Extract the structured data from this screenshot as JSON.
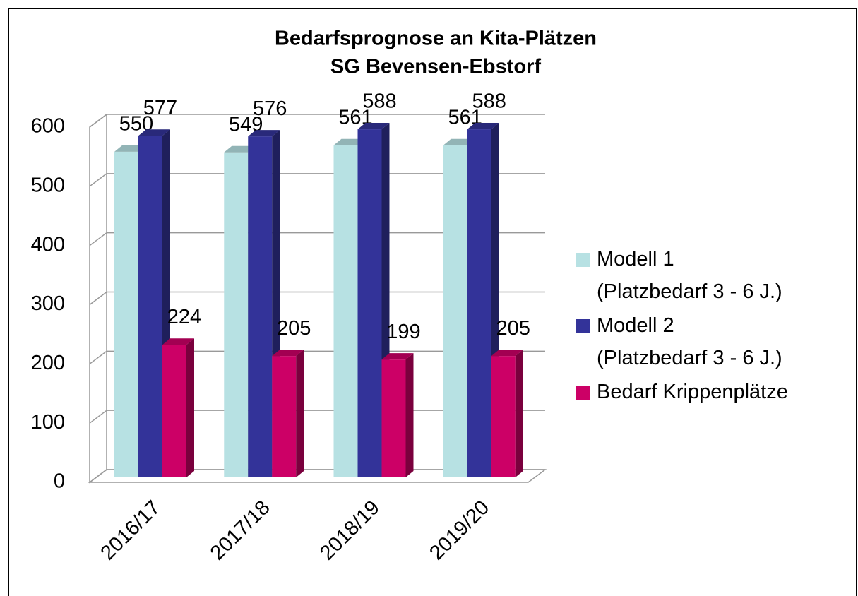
{
  "chart_data": {
    "type": "bar3d",
    "title": "Bedarfsprognose an Kita-Plätzen",
    "subtitle": "SG Bevensen-Ebstorf",
    "categories": [
      "2016/17",
      "2017/18",
      "2018/19",
      "2019/20"
    ],
    "series": [
      {
        "name": "Modell 1 (Platzbedarf 3 - 6 J.)",
        "color": "#b7e1e3",
        "values": [
          550,
          549,
          561,
          561
        ]
      },
      {
        "name": "Modell 2 (Platzbedarf 3 - 6 J.)",
        "color": "#333399",
        "values": [
          577,
          576,
          588,
          588
        ]
      },
      {
        "name": "Bedarf Krippenplätze",
        "color": "#cc0066",
        "values": [
          224,
          205,
          199,
          205
        ]
      }
    ],
    "ylim": [
      0,
      600
    ],
    "yticks": [
      0,
      100,
      200,
      300,
      400,
      500,
      600
    ],
    "grid": true,
    "legend": "right"
  }
}
